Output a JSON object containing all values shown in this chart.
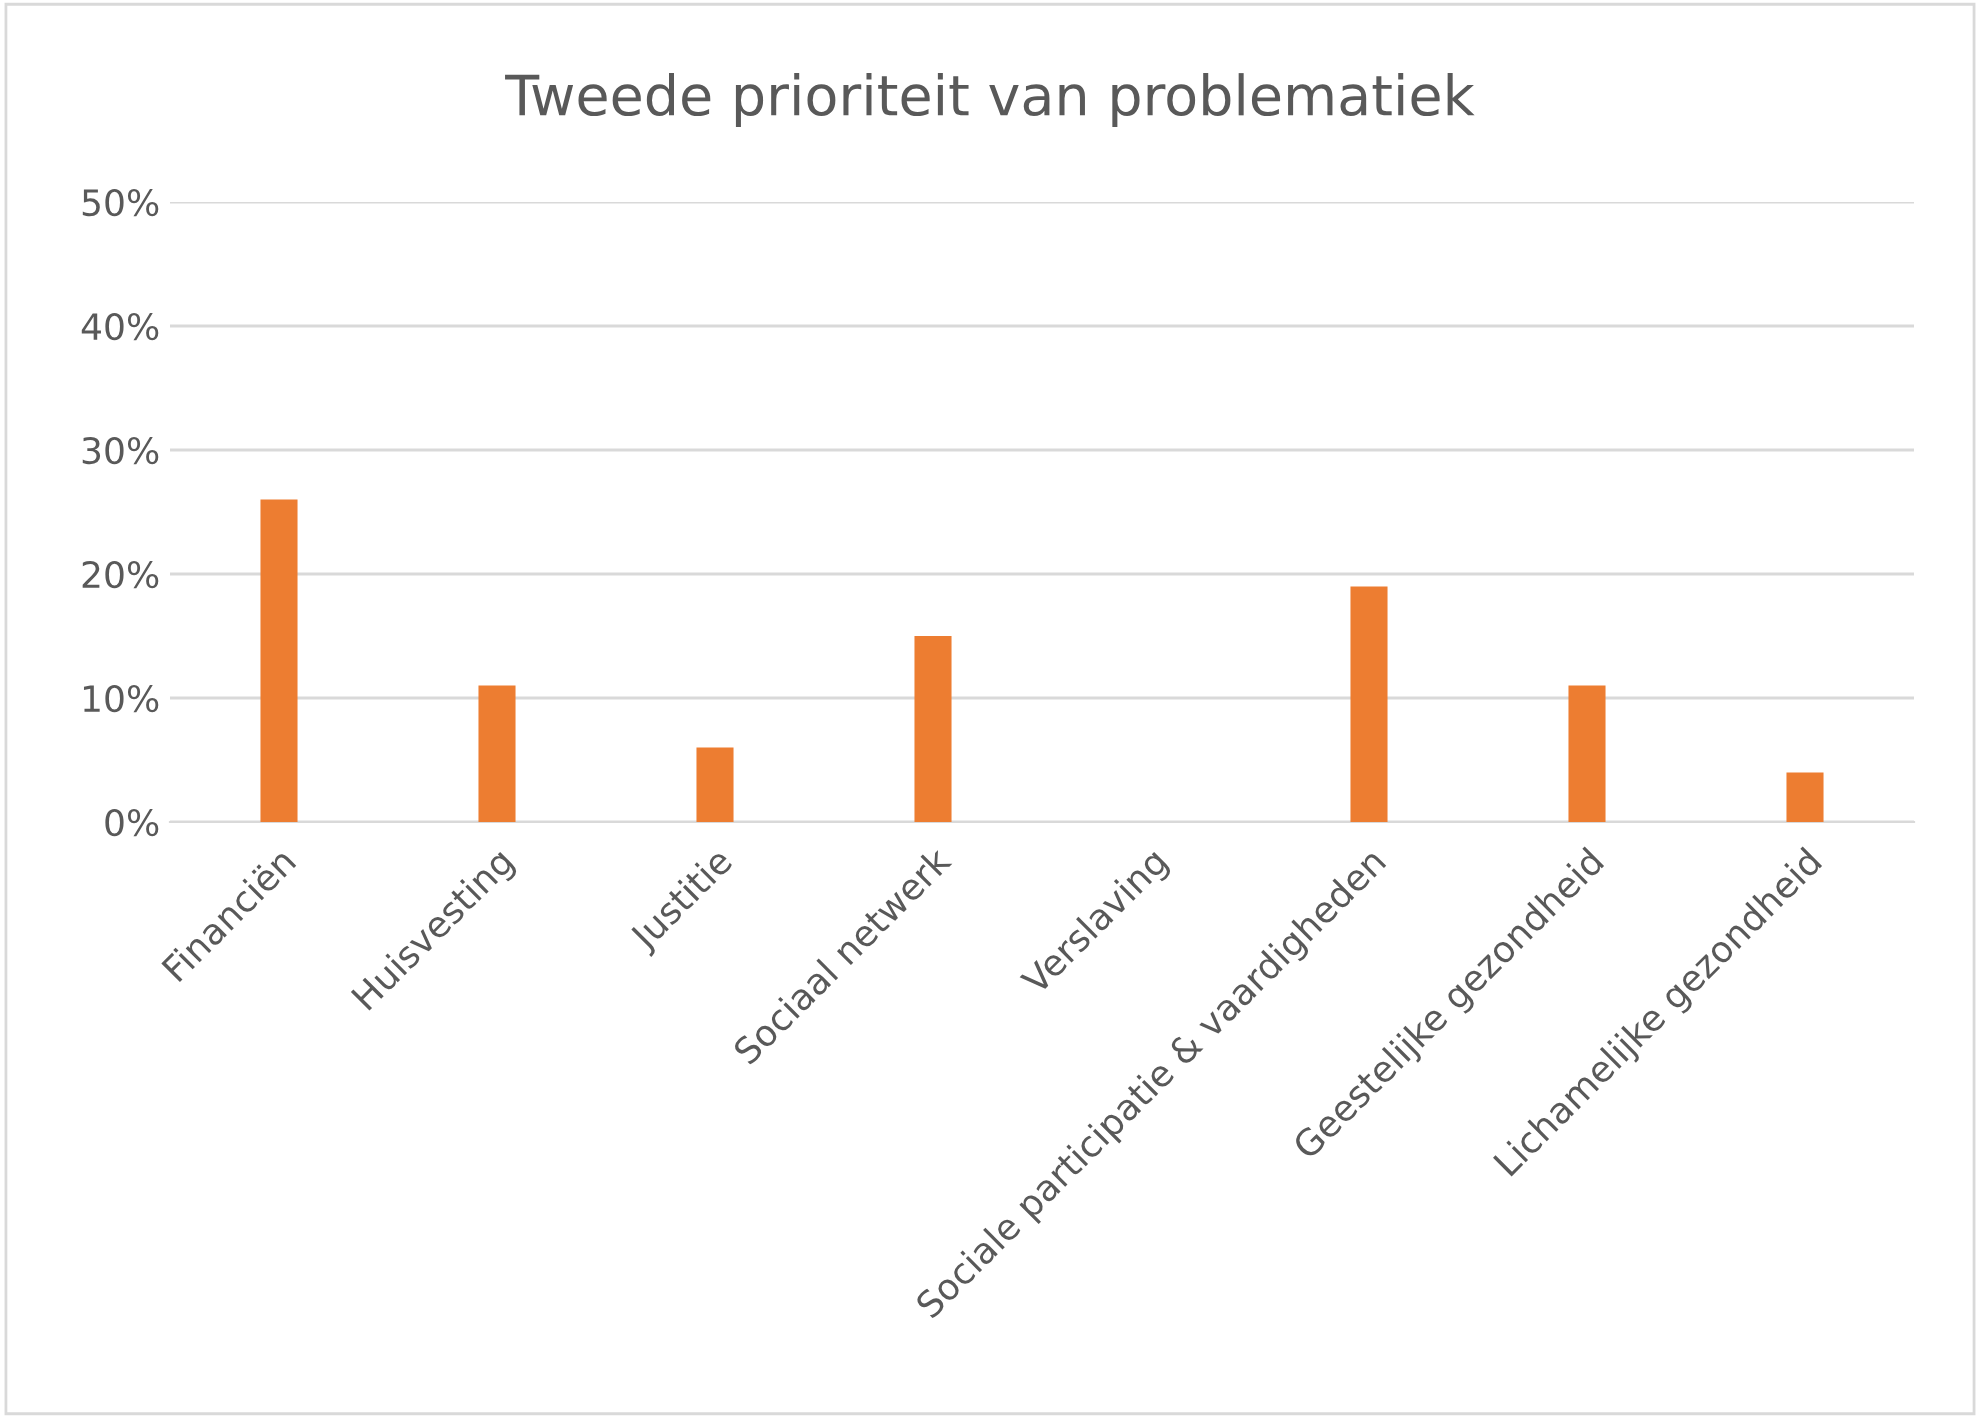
{
  "chart_data": {
    "type": "bar",
    "title": "Tweede prioriteit van problematiek",
    "categories": [
      "Financiën",
      "Huisvesting",
      "Justitie",
      "Sociaal netwerk",
      "Verslaving",
      "Sociale participatie & vaardigheden",
      "Geestelijke gezondheid",
      "Lichamelijke gezondheid"
    ],
    "values": [
      26,
      11,
      6,
      15,
      0,
      19,
      11,
      4
    ],
    "color": "#ed7d31",
    "ylim": [
      0,
      50
    ],
    "yticks": [
      {
        "value": 0,
        "label": "0%"
      },
      {
        "value": 10,
        "label": "10%"
      },
      {
        "value": 20,
        "label": "20%"
      },
      {
        "value": 30,
        "label": "30%"
      },
      {
        "value": 40,
        "label": "40%"
      },
      {
        "value": 50,
        "label": "50%"
      }
    ],
    "grid": "y"
  }
}
